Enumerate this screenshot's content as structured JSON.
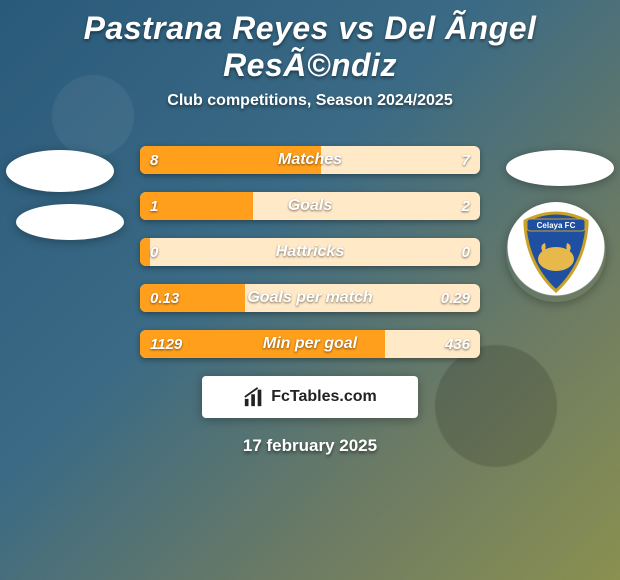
{
  "title": "Pastrana Reyes vs Del Ãngel ResÃ©ndiz",
  "subtitle": "Club competitions, Season 2024/2025",
  "date": "17 february 2025",
  "brand": "FcTables.com",
  "colors": {
    "bar_left_fill": "#ff9f1c",
    "bar_right_fill": "#ffe9c7",
    "text": "#ffffff",
    "brand_bg": "#ffffff",
    "brand_text": "#222222"
  },
  "crest": {
    "label": "Celaya FC",
    "shield_fill": "#1f4fa0",
    "shield_stroke": "#c9a227",
    "banner_fill": "#1f4fa0",
    "bull_fill": "#e7b84a"
  },
  "stats": [
    {
      "label": "Matches",
      "left_text": "8",
      "right_text": "7",
      "left_num": 8,
      "right_num": 7
    },
    {
      "label": "Goals",
      "left_text": "1",
      "right_text": "2",
      "left_num": 1,
      "right_num": 2
    },
    {
      "label": "Hattricks",
      "left_text": "0",
      "right_text": "0",
      "left_num": 0,
      "right_num": 0
    },
    {
      "label": "Goals per match",
      "left_text": "0.13",
      "right_text": "0.29",
      "left_num": 0.13,
      "right_num": 0.29
    },
    {
      "label": "Min per goal",
      "left_text": "1129",
      "right_text": "436",
      "left_num": 1129,
      "right_num": 436
    }
  ]
}
